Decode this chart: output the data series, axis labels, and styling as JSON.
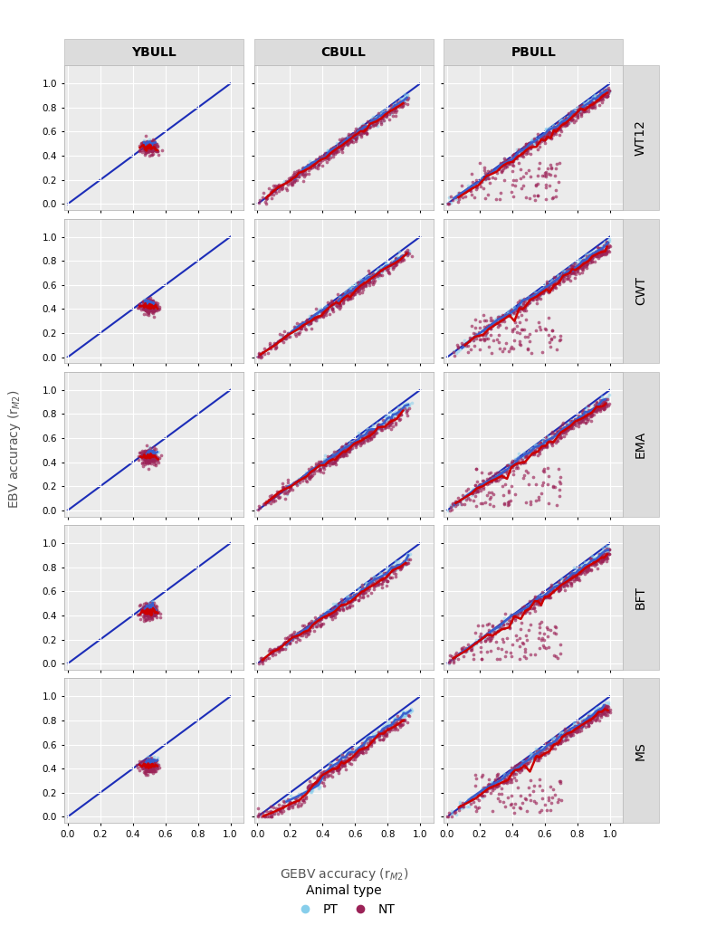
{
  "rows": [
    "WT12",
    "CWT",
    "EMA",
    "BFT",
    "MS"
  ],
  "cols": [
    "YBULL",
    "CBULL",
    "PBULL"
  ],
  "panel_bg_color": "#EBEBEB",
  "grid_color": "white",
  "strip_bg_color": "#DCDCDC",
  "pt_color": "#87CEEB",
  "nt_color": "#9B2257",
  "pt_line_color": "#3A5FCD",
  "nt_line_color": "#CC0000",
  "ref_line_color": "#1C2DB8",
  "axis_label_x": "GEBV accuracy (r$_{M2}$)",
  "axis_label_y": "EBV accuracy (r$_{M2}$)",
  "xlim": [
    -0.02,
    1.08
  ],
  "ylim": [
    -0.05,
    1.15
  ],
  "xticks": [
    0.0,
    0.2,
    0.4,
    0.6,
    0.8,
    1.0
  ],
  "yticks": [
    0.0,
    0.2,
    0.4,
    0.6,
    0.8,
    1.0
  ],
  "legend_title": "Animal type",
  "tick_fontsize": 7.5,
  "label_fontsize": 10,
  "strip_fontsize": 10
}
